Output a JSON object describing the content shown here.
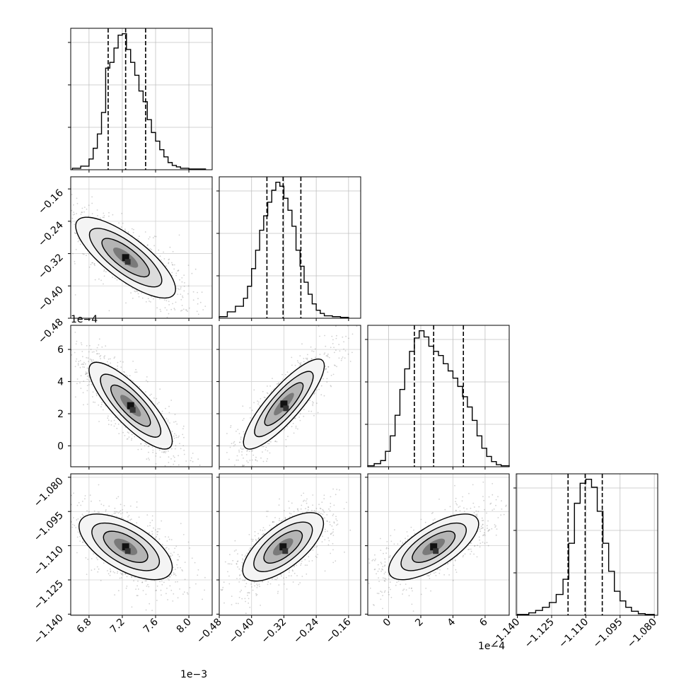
{
  "chart_data": {
    "type": "corner",
    "grid": true,
    "params": [
      {
        "ticks": [
          6.8,
          7.2,
          7.6,
          8.0
        ],
        "tick_labels": [
          "6.8",
          "7.2",
          "7.6",
          "8.0"
        ],
        "lim": [
          6.58,
          8.28
        ],
        "axis_offset": "1e−3",
        "quantiles": [
          7.03,
          7.24,
          7.48
        ],
        "hist_bins": [
          6.6,
          6.7,
          6.8,
          6.85,
          6.9,
          6.95,
          7.0,
          7.05,
          7.1,
          7.15,
          7.2,
          7.25,
          7.3,
          7.35,
          7.4,
          7.45,
          7.5,
          7.55,
          7.6,
          7.65,
          7.7,
          7.75,
          7.8,
          7.85,
          7.9,
          8.0,
          8.1,
          8.2
        ],
        "hist_counts": [
          2,
          5,
          15,
          30,
          50,
          80,
          142,
          150,
          170,
          188,
          190,
          168,
          150,
          132,
          110,
          95,
          70,
          52,
          40,
          28,
          18,
          10,
          6,
          4,
          2,
          1,
          1
        ]
      },
      {
        "ticks": [
          -0.48,
          -0.4,
          -0.32,
          -0.24,
          -0.16
        ],
        "tick_labels": [
          "−0.48",
          "−0.40",
          "−0.32",
          "−0.24",
          "−0.16"
        ],
        "lim": [
          -0.48,
          -0.13
        ],
        "quantiles": [
          -0.362,
          -0.322,
          -0.278
        ],
        "hist_bins": [
          -0.48,
          -0.46,
          -0.44,
          -0.42,
          -0.41,
          -0.4,
          -0.39,
          -0.38,
          -0.37,
          -0.36,
          -0.35,
          -0.34,
          -0.33,
          -0.32,
          -0.31,
          -0.3,
          -0.29,
          -0.28,
          -0.27,
          -0.26,
          -0.25,
          -0.24,
          -0.23,
          -0.22,
          -0.2,
          -0.18,
          -0.16
        ],
        "hist_counts": [
          2,
          8,
          15,
          25,
          40,
          62,
          85,
          110,
          128,
          145,
          160,
          170,
          165,
          150,
          135,
          115,
          85,
          65,
          45,
          30,
          18,
          10,
          6,
          3,
          2,
          1
        ]
      },
      {
        "ticks": [
          0,
          2,
          4,
          6
        ],
        "tick_labels": [
          "0",
          "2",
          "4",
          "6"
        ],
        "lim": [
          -1.3,
          7.5
        ],
        "axis_offset": "1e−4",
        "quantiles": [
          1.6,
          2.8,
          4.65
        ],
        "hist_bins": [
          -1.3,
          -0.9,
          -0.5,
          -0.2,
          0.1,
          0.4,
          0.7,
          1.0,
          1.3,
          1.6,
          1.9,
          2.2,
          2.5,
          2.8,
          3.1,
          3.4,
          3.7,
          4.0,
          4.3,
          4.6,
          4.9,
          5.2,
          5.5,
          5.8,
          6.1,
          6.4,
          6.7,
          7.0,
          7.5
        ],
        "hist_counts": [
          1,
          3,
          6,
          15,
          30,
          50,
          75,
          95,
          112,
          125,
          132,
          126,
          117,
          112,
          108,
          100,
          93,
          86,
          78,
          68,
          58,
          45,
          30,
          18,
          10,
          5,
          2,
          1
        ]
      },
      {
        "ticks": [
          -1.14,
          -1.125,
          -1.11,
          -1.095,
          -1.08
        ],
        "tick_labels": [
          "−1.140",
          "−1.125",
          "−1.110",
          "−1.095",
          "−1.080"
        ],
        "lim": [
          -1.1405,
          -1.0785
        ],
        "quantiles": [
          -1.1178,
          -1.1103,
          -1.1028
        ],
        "hist_bins": [
          -1.14,
          -1.135,
          -1.132,
          -1.129,
          -1.126,
          -1.123,
          -1.12,
          -1.1175,
          -1.115,
          -1.1125,
          -1.11,
          -1.1075,
          -1.105,
          -1.1025,
          -1.1,
          -1.0975,
          -1.095,
          -1.0925,
          -1.09,
          -1.087,
          -1.084,
          -1.08
        ],
        "hist_counts": [
          1,
          3,
          6,
          10,
          16,
          26,
          45,
          90,
          140,
          165,
          170,
          160,
          130,
          90,
          55,
          30,
          18,
          10,
          5,
          2,
          1
        ]
      }
    ],
    "pairs": [
      {
        "row": 1,
        "col": 0,
        "center": [
          7.24,
          -0.33
        ],
        "std": [
          0.3,
          0.05
        ],
        "corr": -0.78
      },
      {
        "row": 2,
        "col": 0,
        "center": [
          7.3,
          2.5
        ],
        "std": [
          0.25,
          1.35
        ],
        "corr": -0.82
      },
      {
        "row": 2,
        "col": 1,
        "center": [
          -0.32,
          2.6
        ],
        "std": [
          0.05,
          1.4
        ],
        "corr": 0.85
      },
      {
        "row": 3,
        "col": 0,
        "center": [
          7.24,
          -1.1105
        ],
        "std": [
          0.28,
          0.0072
        ],
        "corr": -0.62
      },
      {
        "row": 3,
        "col": 1,
        "center": [
          -0.322,
          -1.1105
        ],
        "std": [
          0.05,
          0.0075
        ],
        "corr": 0.68
      },
      {
        "row": 3,
        "col": 2,
        "center": [
          2.8,
          -1.1105
        ],
        "std": [
          1.4,
          0.0072
        ],
        "corr": 0.7
      }
    ]
  }
}
